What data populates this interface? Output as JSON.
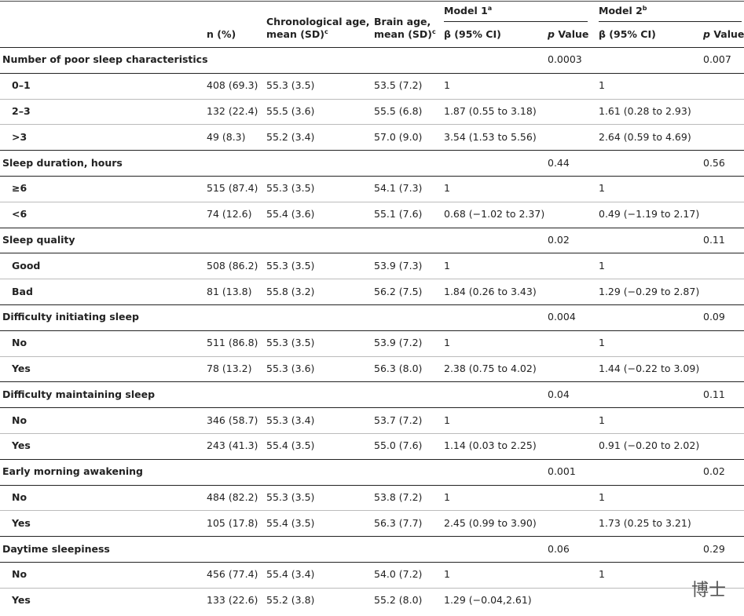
{
  "table": {
    "header": {
      "n": "n (%)",
      "chrono": {
        "line1": "Chronological age,",
        "line2": "mean (SD)",
        "sup": "c"
      },
      "brain": {
        "line1": "Brain age,",
        "line2": "mean (SD)",
        "sup": "c"
      },
      "model1": {
        "text": "Model 1",
        "sup": "a"
      },
      "model2": {
        "text": "Model 2",
        "sup": "b"
      },
      "beta": "β (95% CI)",
      "pvalue": {
        "italic": "p",
        "rest": "Value"
      }
    },
    "sections": [
      {
        "title": "Number of poor sleep characteristics",
        "p1": "0.0003",
        "p2": "0.007",
        "rows": [
          [
            "0–1",
            "408 (69.3)",
            "55.3 (3.5)",
            "53.5 (7.2)",
            "1",
            "1"
          ],
          [
            "2–3",
            "132 (22.4)",
            "55.5 (3.6)",
            "55.5 (6.8)",
            "1.87 (0.55 to 3.18)",
            "1.61 (0.28 to 2.93)"
          ],
          [
            ">3",
            "49 (8.3)",
            "55.2 (3.4)",
            "57.0 (9.0)",
            "3.54 (1.53 to 5.56)",
            "2.64 (0.59 to 4.69)"
          ]
        ]
      },
      {
        "title": "Sleep duration, hours",
        "p1": "0.44",
        "p2": "0.56",
        "rows": [
          [
            "≥6",
            "515 (87.4)",
            "55.3 (3.5)",
            "54.1 (7.3)",
            "1",
            "1"
          ],
          [
            "<6",
            "74 (12.6)",
            "55.4 (3.6)",
            "55.1 (7.6)",
            "0.68 (−1.02 to 2.37)",
            "0.49 (−1.19 to 2.17)"
          ]
        ]
      },
      {
        "title": "Sleep quality",
        "p1": "0.02",
        "p2": "0.11",
        "rows": [
          [
            "Good",
            "508 (86.2)",
            "55.3 (3.5)",
            "53.9 (7.3)",
            "1",
            "1"
          ],
          [
            "Bad",
            "81 (13.8)",
            "55.8 (3.2)",
            "56.2 (7.5)",
            "1.84 (0.26 to 3.43)",
            "1.29 (−0.29 to 2.87)"
          ]
        ]
      },
      {
        "title": "Difficulty initiating sleep",
        "p1": "0.004",
        "p2": "0.09",
        "rows": [
          [
            "No",
            "511 (86.8)",
            "55.3 (3.5)",
            "53.9 (7.2)",
            "1",
            "1"
          ],
          [
            "Yes",
            "78 (13.2)",
            "55.3 (3.6)",
            "56.3 (8.0)",
            "2.38 (0.75 to 4.02)",
            "1.44 (−0.22 to 3.09)"
          ]
        ]
      },
      {
        "title": "Difficulty maintaining sleep",
        "p1": "0.04",
        "p2": "0.11",
        "rows": [
          [
            "No",
            "346 (58.7)",
            "55.3 (3.4)",
            "53.7 (7.2)",
            "1",
            "1"
          ],
          [
            "Yes",
            "243 (41.3)",
            "55.4 (3.5)",
            "55.0 (7.6)",
            "1.14 (0.03 to 2.25)",
            "0.91 (−0.20 to 2.02)"
          ]
        ]
      },
      {
        "title": "Early morning awakening",
        "p1": "0.001",
        "p2": "0.02",
        "rows": [
          [
            "No",
            "484 (82.2)",
            "55.3 (3.5)",
            "53.8 (7.2)",
            "1",
            "1"
          ],
          [
            "Yes",
            "105 (17.8)",
            "55.4 (3.5)",
            "56.3 (7.7)",
            "2.45 (0.99 to 3.90)",
            "1.73 (0.25 to 3.21)"
          ]
        ]
      },
      {
        "title": "Daytime sleepiness",
        "p1": "0.06",
        "p2": "0.29",
        "rows": [
          [
            "No",
            "456 (77.4)",
            "55.4 (3.4)",
            "54.0 (7.2)",
            "1",
            "1"
          ],
          [
            "Yes",
            "133 (22.6)",
            "55.2 (3.8)",
            "55.2 (8.0)",
            "1.29 (−0.04,2.61)",
            ""
          ]
        ]
      }
    ],
    "watermark": "博士"
  }
}
